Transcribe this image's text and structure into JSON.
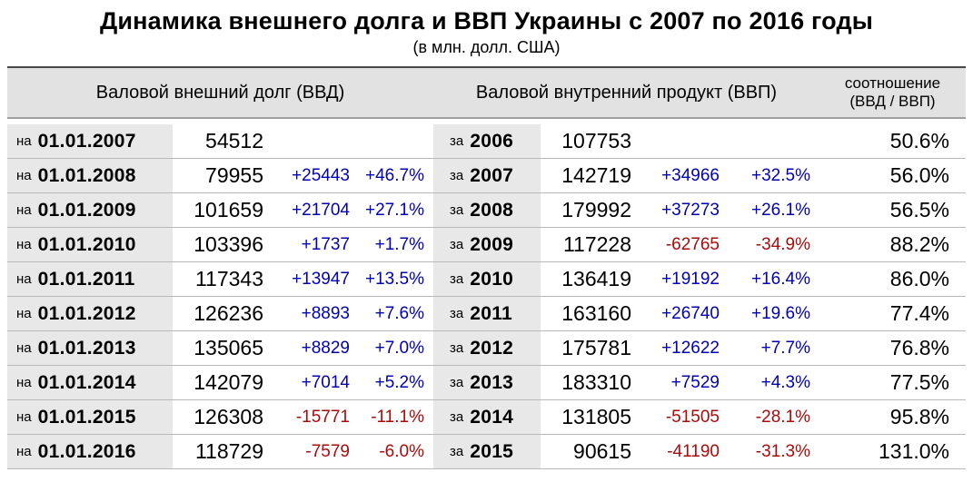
{
  "title": "Динамика внешнего долга и ВВП Украины с 2007 по 2016 годы",
  "subtitle": "(в млн. долл. США)",
  "colors": {
    "positive_delta": "#0000b4",
    "negative_delta": "#aa0a0a",
    "header_bg": "#e2e2e2",
    "label_cell_bg": "#e8e8e8",
    "row_separator": "#b8b8b8"
  },
  "table": {
    "headers": {
      "debt": "Валовой внешний долг (ВВД)",
      "gdp": "Валовой внутренний продукт (ВВП)",
      "ratio_line1": "соотношение",
      "ratio_line2": "(ВВД / ВВП)"
    },
    "date_prefix": "на",
    "year_prefix": "за",
    "rows": [
      {
        "date": "01.01.2007",
        "debt": "54512",
        "debt_delta": "",
        "debt_pct": "",
        "year": "2006",
        "gdp": "107753",
        "gdp_delta": "",
        "gdp_pct": "",
        "ratio": "50.6%"
      },
      {
        "date": "01.01.2008",
        "debt": "79955",
        "debt_delta": "+25443",
        "debt_pct": "+46.7%",
        "year": "2007",
        "gdp": "142719",
        "gdp_delta": "+34966",
        "gdp_pct": "+32.5%",
        "ratio": "56.0%"
      },
      {
        "date": "01.01.2009",
        "debt": "101659",
        "debt_delta": "+21704",
        "debt_pct": "+27.1%",
        "year": "2008",
        "gdp": "179992",
        "gdp_delta": "+37273",
        "gdp_pct": "+26.1%",
        "ratio": "56.5%"
      },
      {
        "date": "01.01.2010",
        "debt": "103396",
        "debt_delta": "+1737",
        "debt_pct": "+1.7%",
        "year": "2009",
        "gdp": "117228",
        "gdp_delta": "-62765",
        "gdp_pct": "-34.9%",
        "ratio": "88.2%"
      },
      {
        "date": "01.01.2011",
        "debt": "117343",
        "debt_delta": "+13947",
        "debt_pct": "+13.5%",
        "year": "2010",
        "gdp": "136419",
        "gdp_delta": "+19192",
        "gdp_pct": "+16.4%",
        "ratio": "86.0%"
      },
      {
        "date": "01.01.2012",
        "debt": "126236",
        "debt_delta": "+8893",
        "debt_pct": "+7.6%",
        "year": "2011",
        "gdp": "163160",
        "gdp_delta": "+26740",
        "gdp_pct": "+19.6%",
        "ratio": "77.4%"
      },
      {
        "date": "01.01.2013",
        "debt": "135065",
        "debt_delta": "+8829",
        "debt_pct": "+7.0%",
        "year": "2012",
        "gdp": "175781",
        "gdp_delta": "+12622",
        "gdp_pct": "+7.7%",
        "ratio": "76.8%"
      },
      {
        "date": "01.01.2014",
        "debt": "142079",
        "debt_delta": "+7014",
        "debt_pct": "+5.2%",
        "year": "2013",
        "gdp": "183310",
        "gdp_delta": "+7529",
        "gdp_pct": "+4.3%",
        "ratio": "77.5%"
      },
      {
        "date": "01.01.2015",
        "debt": "126308",
        "debt_delta": "-15771",
        "debt_pct": "-11.1%",
        "year": "2014",
        "gdp": "131805",
        "gdp_delta": "-51505",
        "gdp_pct": "-28.1%",
        "ratio": "95.8%"
      },
      {
        "date": "01.01.2016",
        "debt": "118729",
        "debt_delta": "-7579",
        "debt_pct": "-6.0%",
        "year": "2015",
        "gdp": "90615",
        "gdp_delta": "-41190",
        "gdp_pct": "-31.3%",
        "ratio": "131.0%"
      }
    ]
  },
  "chart_data": {
    "type": "table",
    "title": "Динамика внешнего долга и ВВП Украины с 2007 по 2016 годы",
    "units": "млн. долл. США",
    "external_debt": {
      "dates": [
        "01.01.2007",
        "01.01.2008",
        "01.01.2009",
        "01.01.2010",
        "01.01.2011",
        "01.01.2012",
        "01.01.2013",
        "01.01.2014",
        "01.01.2015",
        "01.01.2016"
      ],
      "values": [
        54512,
        79955,
        101659,
        103396,
        117343,
        126236,
        135065,
        142079,
        126308,
        118729
      ],
      "delta": [
        null,
        25443,
        21704,
        1737,
        13947,
        8893,
        8829,
        7014,
        -15771,
        -7579
      ],
      "delta_pct": [
        null,
        46.7,
        27.1,
        1.7,
        13.5,
        7.6,
        7.0,
        5.2,
        -11.1,
        -6.0
      ]
    },
    "gdp": {
      "years": [
        2006,
        2007,
        2008,
        2009,
        2010,
        2011,
        2012,
        2013,
        2014,
        2015
      ],
      "values": [
        107753,
        142719,
        179992,
        117228,
        136419,
        163160,
        175781,
        183310,
        131805,
        90615
      ],
      "delta": [
        null,
        34966,
        37273,
        -62765,
        19192,
        26740,
        12622,
        7529,
        -51505,
        -41190
      ],
      "delta_pct": [
        null,
        32.5,
        26.1,
        -34.9,
        16.4,
        19.6,
        7.7,
        4.3,
        -28.1,
        -31.3
      ]
    },
    "debt_to_gdp_ratio_pct": [
      50.6,
      56.0,
      56.5,
      88.2,
      86.0,
      77.4,
      76.8,
      77.5,
      95.8,
      131.0
    ]
  }
}
